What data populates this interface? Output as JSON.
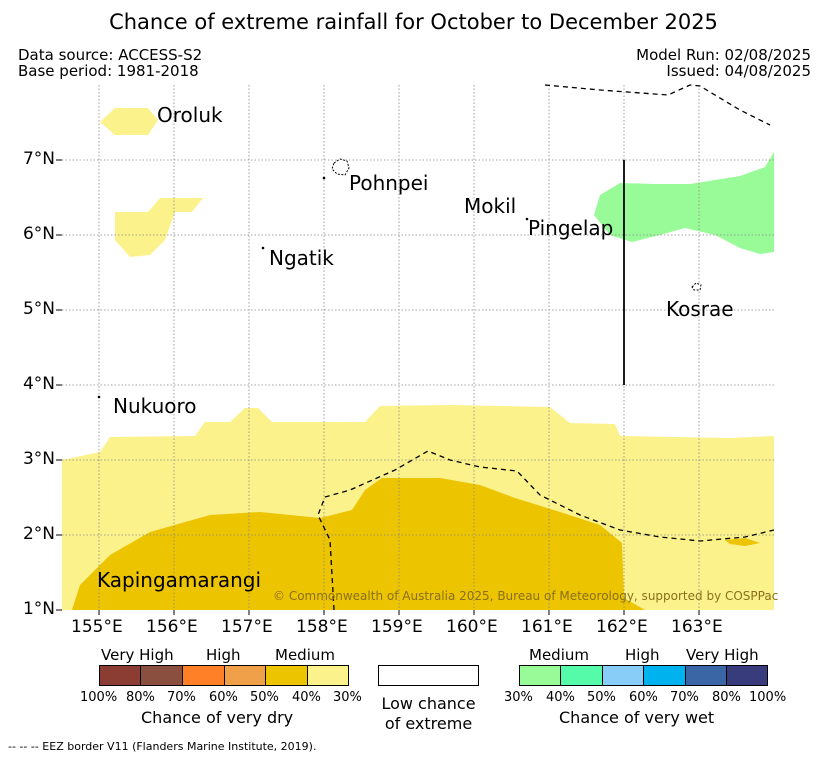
{
  "title": "Chance of extreme rainfall for October to December 2025",
  "meta": {
    "data_source": "Data source: ACCESS-S2",
    "base_period": "Base period: 1981-2018",
    "model_run": "Model Run: 02/08/2025",
    "issued": "Issued: 04/08/2025"
  },
  "map": {
    "lon_range": [
      154.5,
      164.0
    ],
    "lat_range": [
      1.0,
      8.0
    ],
    "x_ticks": [
      "155°E",
      "156°E",
      "157°E",
      "158°E",
      "159°E",
      "160°E",
      "161°E",
      "162°E",
      "163°E"
    ],
    "y_ticks": [
      "1°N",
      "2°N",
      "3°N",
      "4°N",
      "5°N",
      "6°N",
      "7°N"
    ],
    "grid": true,
    "places": [
      "Oroluk",
      "Pohnpei",
      "Mokil",
      "Pingelap",
      "Ngatik",
      "Kosrae",
      "Nukuoro",
      "Kapingamarangi"
    ],
    "copyright": "© Commonwealth of Australia 2025, Bureau of Meteorology, supported by COSPPac",
    "colors": {
      "dry_medium_30": "#fbf28c",
      "dry_medium_40": "#ecc400",
      "wet_medium_30": "#99fb98",
      "eez_border": "#000000"
    }
  },
  "legend": {
    "dry": {
      "headings": [
        "Very High",
        "High",
        "Medium"
      ],
      "ticks": [
        "100%",
        "80%",
        "70%",
        "60%",
        "50%",
        "40%",
        "30%"
      ],
      "colors": [
        "#8b3d33",
        "#8b4f40",
        "#ff8026",
        "#f0a048",
        "#ecc400",
        "#fbf28c"
      ],
      "caption": "Chance of very dry"
    },
    "low": {
      "caption_line1": "Low chance",
      "caption_line2": "of extreme"
    },
    "wet": {
      "headings": [
        "Medium",
        "High",
        "Very High"
      ],
      "ticks": [
        "30%",
        "40%",
        "50%",
        "60%",
        "70%",
        "80%",
        "100%"
      ],
      "colors": [
        "#99fb98",
        "#55fba8",
        "#88ccf8",
        "#00b2ee",
        "#3a66a6",
        "#393c7c"
      ],
      "caption": "Chance of very wet"
    }
  },
  "footer": {
    "eez_note": "--  --  -- EEZ border V11 (Flanders Marine Institute, 2019)."
  }
}
